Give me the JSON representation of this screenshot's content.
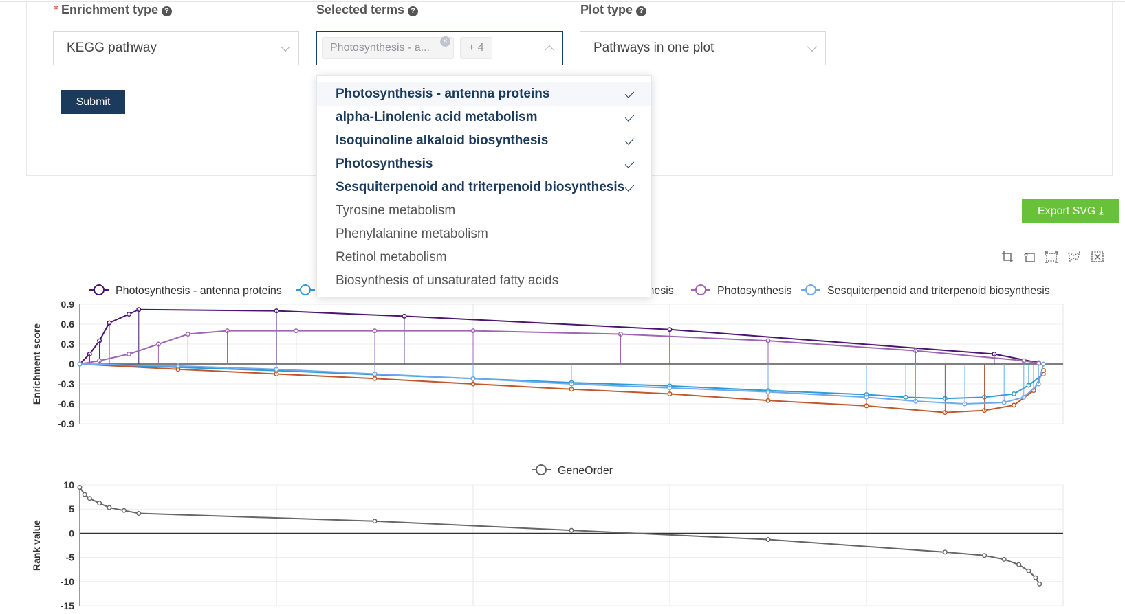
{
  "form": {
    "enrichment_label": "Enrichment type",
    "enrichment_required": "*",
    "enrichment_value": "KEGG pathway",
    "terms_label": "Selected terms",
    "terms_tag": "Photosynthesis - a...",
    "terms_more": "+ 4",
    "plot_label": "Plot type",
    "plot_value": "Pathways in one plot",
    "submit_label": "Submit",
    "help_glyph": "?"
  },
  "dropdown": {
    "items": [
      {
        "label": "Photosynthesis - antenna proteins",
        "selected": true
      },
      {
        "label": "alpha-Linolenic acid metabolism",
        "selected": true
      },
      {
        "label": "Isoquinoline alkaloid biosynthesis",
        "selected": true
      },
      {
        "label": "Photosynthesis",
        "selected": true
      },
      {
        "label": "Sesquiterpenoid and triterpenoid biosynthesis",
        "selected": true
      },
      {
        "label": "Tyrosine metabolism",
        "selected": false
      },
      {
        "label": "Phenylalanine metabolism",
        "selected": false
      },
      {
        "label": "Retinol metabolism",
        "selected": false
      },
      {
        "label": "Biosynthesis of unsaturated fatty acids",
        "selected": false
      }
    ]
  },
  "export": {
    "label": "Export SVG ⤓"
  },
  "toolbox": [
    "zoom-icon",
    "zoom-reset-icon",
    "rect-select-icon",
    "lasso-select-icon",
    "clear-select-icon"
  ],
  "chart_data": [
    {
      "type": "line",
      "ylabel": "Enrichment score",
      "ylim": [
        -0.9,
        0.9
      ],
      "yticks": [
        "0.9",
        "0.6",
        "0.3",
        "0",
        "-0.3",
        "-0.6",
        "-0.9"
      ],
      "legend": {
        "placement": "top",
        "entries": [
          {
            "name": "Photosynthesis - antenna proteins",
            "color": "#4b1470"
          },
          {
            "name": "",
            "color": "#2e9bd6"
          },
          {
            "name": "thesis",
            "color": "#c0582a"
          },
          {
            "name": "Photosynthesis",
            "color": "#a064b4"
          },
          {
            "name": "Sesquiterpenoid and triterpenoid biosynthesis",
            "color": "#6fa8ec"
          }
        ]
      },
      "series": [
        {
          "name": "Photosynthesis - antenna proteins",
          "color": "#4b1470",
          "x": [
            0,
            0.01,
            0.02,
            0.03,
            0.05,
            0.06,
            0.2,
            0.33,
            0.6,
            0.93,
            0.975
          ],
          "y": [
            0,
            0.15,
            0.35,
            0.62,
            0.75,
            0.82,
            0.8,
            0.72,
            0.52,
            0.15,
            0.02
          ]
        },
        {
          "name": "",
          "color": "#2e9bd6",
          "x": [
            0,
            0.1,
            0.2,
            0.3,
            0.4,
            0.5,
            0.6,
            0.7,
            0.8,
            0.84,
            0.88,
            0.92,
            0.95,
            0.965,
            0.98
          ],
          "y": [
            0,
            -0.05,
            -0.1,
            -0.16,
            -0.22,
            -0.28,
            -0.33,
            -0.4,
            -0.46,
            -0.5,
            -0.52,
            -0.5,
            -0.45,
            -0.32,
            -0.15
          ]
        },
        {
          "name": "",
          "color": "#c0582a",
          "x": [
            0,
            0.1,
            0.2,
            0.3,
            0.4,
            0.5,
            0.6,
            0.7,
            0.8,
            0.88,
            0.92,
            0.95,
            0.97,
            0.98
          ],
          "y": [
            0,
            -0.08,
            -0.15,
            -0.22,
            -0.3,
            -0.38,
            -0.45,
            -0.55,
            -0.63,
            -0.73,
            -0.7,
            -0.62,
            -0.4,
            -0.1
          ]
        },
        {
          "name": "Photosynthesis",
          "color": "#a064b4",
          "x": [
            0,
            0.02,
            0.05,
            0.08,
            0.11,
            0.15,
            0.22,
            0.3,
            0.4,
            0.55,
            0.7,
            0.85,
            0.96,
            0.975
          ],
          "y": [
            0,
            0.05,
            0.15,
            0.3,
            0.45,
            0.5,
            0.5,
            0.5,
            0.5,
            0.45,
            0.35,
            0.2,
            0.05,
            0.01
          ]
        },
        {
          "name": "Sesquiterpenoid and triterpenoid biosynthesis",
          "color": "#6fa8ec",
          "x": [
            0,
            0.1,
            0.2,
            0.3,
            0.4,
            0.5,
            0.6,
            0.7,
            0.8,
            0.85,
            0.9,
            0.94,
            0.96,
            0.975,
            0.98
          ],
          "y": [
            0,
            -0.03,
            -0.08,
            -0.15,
            -0.22,
            -0.3,
            -0.36,
            -0.42,
            -0.5,
            -0.56,
            -0.6,
            -0.58,
            -0.5,
            -0.3,
            0
          ]
        }
      ]
    },
    {
      "type": "line",
      "ylabel": "Rank value",
      "ylim": [
        -15,
        10
      ],
      "yticks": [
        "10",
        "5",
        "0",
        "-5",
        "-10",
        "-15"
      ],
      "legend": {
        "placement": "top-center",
        "entries": [
          {
            "name": "GeneOrder",
            "color": "#666666"
          }
        ]
      },
      "series": [
        {
          "name": "GeneOrder",
          "color": "#666666",
          "x": [
            0,
            0.005,
            0.01,
            0.02,
            0.03,
            0.045,
            0.06,
            0.3,
            0.5,
            0.7,
            0.88,
            0.92,
            0.94,
            0.955,
            0.965,
            0.972,
            0.976
          ],
          "y": [
            9.5,
            8,
            7.2,
            6.2,
            5.3,
            4.7,
            4.1,
            2.5,
            0.6,
            -1.3,
            -3.9,
            -4.6,
            -5.4,
            -6.5,
            -7.8,
            -9.2,
            -10.5
          ]
        }
      ]
    }
  ]
}
